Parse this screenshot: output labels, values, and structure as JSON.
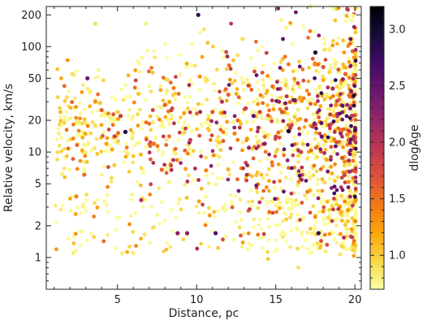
{
  "chart_data": {
    "type": "scatter",
    "xlabel": "Distance, pc",
    "ylabel": "Relative velocity, km/s",
    "xlim": [
      0.5,
      20.4
    ],
    "ylim": [
      0.5,
      240
    ],
    "y_scale": "log",
    "x_ticks": [
      5,
      10,
      15,
      20
    ],
    "x_tick_labels": [
      "5",
      "10",
      "15",
      "20"
    ],
    "y_ticks": [
      1,
      2,
      5,
      10,
      20,
      50,
      100,
      200
    ],
    "y_tick_labels": [
      "1",
      "2",
      "5",
      "10",
      "20",
      "50",
      "100",
      "200"
    ],
    "grid": false,
    "colorbar": {
      "label": "dlogAge",
      "range": [
        0.7,
        3.2
      ],
      "ticks": [
        1.0,
        1.5,
        2.0,
        2.5,
        3.0
      ],
      "tick_labels": [
        "1.0",
        "1.5",
        "2.0",
        "2.5",
        "3.0"
      ],
      "colormap": "inferno_r",
      "stops": [
        "#fcffa4",
        "#f6d746",
        "#fca50a",
        "#f37819",
        "#dd513a",
        "#bc3754",
        "#932667",
        "#6a176e",
        "#420a68",
        "#160b39",
        "#000004"
      ]
    },
    "point_color_default": "#f6d746",
    "points": [
      [
        1.3,
        15,
        0.8
      ],
      [
        1.8,
        33,
        0.9
      ],
      [
        1.5,
        6.2,
        0.8
      ],
      [
        2.2,
        1.1,
        0.8
      ],
      [
        2.4,
        3.8,
        1.4
      ],
      [
        2.9,
        6.1,
        1.5
      ],
      [
        3.6,
        165,
        0.9
      ],
      [
        3.1,
        50,
        2.4
      ],
      [
        3.6,
        30,
        1.3
      ],
      [
        4.0,
        25,
        1.6
      ],
      [
        4.3,
        12,
        1.2
      ],
      [
        4.8,
        7.5,
        1.0
      ],
      [
        5.2,
        22,
        1.9
      ],
      [
        5.5,
        15.5,
        2.9
      ],
      [
        5.3,
        1.1,
        0.8
      ],
      [
        6.0,
        1.1,
        0.8
      ],
      [
        6.8,
        165,
        0.8
      ],
      [
        6.5,
        3.5,
        2.0
      ],
      [
        7.3,
        12,
        1.5
      ],
      [
        7.8,
        6.8,
        1.6
      ],
      [
        8.4,
        25,
        1.8
      ],
      [
        8.8,
        1.7,
        2.3
      ],
      [
        9.4,
        1.7,
        2.3
      ],
      [
        10.1,
        200,
        2.8
      ],
      [
        10.2,
        52,
        1.3
      ],
      [
        10.6,
        6.7,
        1.4
      ],
      [
        11.2,
        1.7,
        2.6
      ],
      [
        11.6,
        30,
        2.0
      ],
      [
        12.4,
        15,
        1.4
      ],
      [
        12.9,
        118,
        0.9
      ],
      [
        13.3,
        11,
        2.2
      ],
      [
        13.6,
        22,
        2.5
      ],
      [
        13.9,
        17,
        2.1
      ],
      [
        14.3,
        12,
        2.3
      ],
      [
        14.6,
        2.7,
        1.5
      ],
      [
        15.0,
        14,
        1.9
      ],
      [
        15.4,
        24,
        1.7
      ],
      [
        15.8,
        15.8,
        3.0
      ],
      [
        16.2,
        31,
        2.4
      ],
      [
        16.6,
        10,
        1.8
      ],
      [
        16.9,
        20,
        1.6
      ],
      [
        17.2,
        240,
        0.8
      ],
      [
        17.5,
        88,
        3.0
      ],
      [
        17.7,
        1.7,
        2.8
      ],
      [
        18.0,
        64,
        1.7
      ],
      [
        18.4,
        18,
        2.0
      ],
      [
        18.8,
        28,
        1.4
      ],
      [
        19.1,
        15,
        2.2
      ],
      [
        19.4,
        55,
        1.6
      ],
      [
        19.7,
        26,
        2.3
      ],
      [
        19.9,
        196,
        0.8
      ],
      [
        20.0,
        13,
        1.9
      ],
      [
        19.6,
        5.2,
        1.3
      ],
      [
        18.2,
        8.5,
        1.2
      ],
      [
        17.0,
        4.2,
        1.4
      ],
      [
        12.0,
        35,
        1.6
      ],
      [
        11.0,
        24,
        1.7
      ],
      [
        9.6,
        13,
        1.9
      ],
      [
        8.0,
        28,
        1.6
      ],
      [
        14.8,
        42,
        1.5
      ],
      [
        16.4,
        45,
        1.8
      ],
      [
        18.6,
        40,
        2.1
      ],
      [
        19.2,
        8.8,
        1.7
      ],
      [
        13.1,
        26,
        1.9
      ],
      [
        15.2,
        30,
        2.2
      ],
      [
        17.9,
        14,
        2.5
      ],
      [
        16.0,
        18,
        1.8
      ],
      [
        19.8,
        22,
        2.0
      ],
      [
        12.6,
        20,
        1.5
      ],
      [
        14.0,
        24,
        1.8
      ]
    ]
  }
}
